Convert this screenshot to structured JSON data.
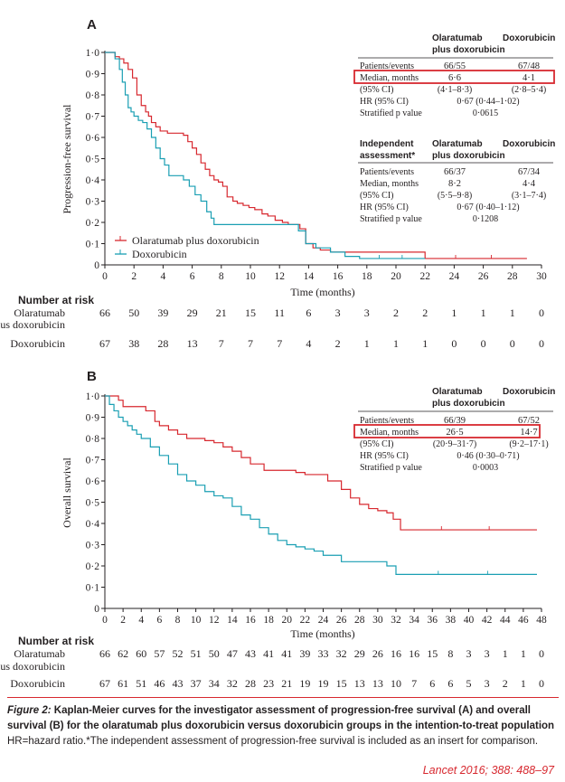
{
  "panels": [
    {
      "letter": "A",
      "ylabel": "Progression-free survival",
      "xlabel": "Time (months)",
      "table": {
        "headers": [
          "Olaratumab",
          "plus doxorubicin",
          "Doxorubicin"
        ],
        "rows": [
          [
            "Patients/events",
            "66/55",
            "67/48"
          ],
          [
            "Median, months",
            "6·6",
            "4·1"
          ],
          [
            "(95% CI)",
            "(4·1–8·3)",
            "(2·8–5·4)"
          ],
          [
            "HR (95% CI)",
            "0·67 (0·44–1·02)",
            ""
          ],
          [
            "Stratified p value",
            "0·0615",
            ""
          ]
        ]
      },
      "table2": {
        "headers": [
          "Independent",
          "assessment*",
          "Olaratumab",
          "plus doxorubicin",
          "Doxorubicin"
        ],
        "rows": [
          [
            "Patients/events",
            "66/37",
            "67/34"
          ],
          [
            "Median, months",
            "8·2",
            "4·4"
          ],
          [
            "(95% CI)",
            "(5·5–9·8)",
            "(3·1–7·4)"
          ],
          [
            "HR (95% CI)",
            "0·67 (0·40–1·12)",
            ""
          ],
          [
            "Stratified p value",
            "0·1208",
            ""
          ]
        ]
      },
      "legend": [
        "Olaratumab plus doxorubicin",
        "Doxorubicin"
      ],
      "risk_title": "Number at risk",
      "risk_labels": [
        "Olaratumab",
        "plus doxorubicin",
        "Doxorubicin"
      ],
      "risk_olara": [
        "66",
        "50",
        "39",
        "29",
        "21",
        "15",
        "11",
        "6",
        "3",
        "3",
        "2",
        "2",
        "1",
        "1",
        "1",
        "0"
      ],
      "risk_doxo": [
        "67",
        "38",
        "28",
        "13",
        "7",
        "7",
        "7",
        "4",
        "2",
        "1",
        "1",
        "1",
        "0",
        "0",
        "0",
        "0"
      ]
    },
    {
      "letter": "B",
      "ylabel": "Overall survival",
      "xlabel": "Time (months)",
      "table": {
        "headers": [
          "Olaratumab",
          "plus doxorubicin",
          "Doxorubicin"
        ],
        "rows": [
          [
            "Patients/events",
            "66/39",
            "67/52"
          ],
          [
            "Median, months",
            "26·5",
            "14·7"
          ],
          [
            "(95% CI)",
            "(20·9–31·7)",
            "(9·2–17·1)"
          ],
          [
            "HR (95% CI)",
            "0·46 (0·30–0·71)",
            ""
          ],
          [
            "Stratified p value",
            "0·0003",
            ""
          ]
        ]
      },
      "risk_title": "Number at risk",
      "risk_labels": [
        "Olaratumab",
        "plus doxorubicin",
        "Doxorubicin"
      ],
      "risk_olara": [
        "66",
        "62",
        "60",
        "57",
        "52",
        "51",
        "50",
        "47",
        "43",
        "41",
        "41",
        "39",
        "33",
        "32",
        "29",
        "26",
        "16",
        "16",
        "15",
        "8",
        "3",
        "3",
        "1",
        "1",
        "0"
      ],
      "risk_doxo": [
        "67",
        "61",
        "51",
        "46",
        "43",
        "37",
        "34",
        "32",
        "28",
        "23",
        "21",
        "19",
        "19",
        "15",
        "13",
        "13",
        "10",
        "7",
        "6",
        "6",
        "5",
        "3",
        "2",
        "1",
        "0"
      ]
    }
  ],
  "chart_data": [
    {
      "type": "line",
      "ylabel": "Progression-free survival",
      "xlabel": "Time (months)",
      "xlim": [
        0,
        30
      ],
      "ylim": [
        0,
        1.0
      ],
      "xticks": [
        "0",
        "2",
        "4",
        "6",
        "8",
        "10",
        "12",
        "14",
        "16",
        "18",
        "20",
        "22",
        "24",
        "26",
        "28",
        "30"
      ],
      "yticks": [
        "0",
        "0·1",
        "0·2",
        "0·3",
        "0·4",
        "0·5",
        "0·6",
        "0·7",
        "0·8",
        "0·9",
        "1·0"
      ],
      "legend_position": "bottom-left",
      "series": [
        {
          "name": "Olaratumab plus doxorubicin",
          "color": "#d7282f",
          "x": [
            0,
            0.7,
            1.0,
            1.3,
            1.6,
            1.9,
            2.2,
            2.5,
            2.8,
            3.0,
            3.2,
            3.5,
            3.8,
            4.0,
            4.3,
            4.6,
            5.0,
            5.4,
            5.7,
            6.0,
            6.3,
            6.6,
            6.9,
            7.2,
            7.5,
            7.8,
            8.1,
            8.4,
            8.8,
            9.1,
            9.5,
            9.9,
            10.3,
            10.8,
            11.2,
            11.7,
            12.2,
            12.6,
            13.0,
            13.4,
            13.8,
            14.3,
            14.8,
            15.5,
            16.5,
            17.5,
            18.5,
            20.5,
            22.0,
            29.0
          ],
          "y": [
            1.0,
            0.98,
            0.97,
            0.95,
            0.92,
            0.88,
            0.8,
            0.75,
            0.72,
            0.7,
            0.67,
            0.65,
            0.63,
            0.63,
            0.62,
            0.62,
            0.62,
            0.61,
            0.58,
            0.55,
            0.52,
            0.48,
            0.45,
            0.42,
            0.4,
            0.39,
            0.37,
            0.32,
            0.3,
            0.29,
            0.28,
            0.27,
            0.26,
            0.24,
            0.23,
            0.21,
            0.2,
            0.19,
            0.19,
            0.17,
            0.1,
            0.08,
            0.07,
            0.06,
            0.06,
            0.06,
            0.06,
            0.06,
            0.03,
            0.03
          ]
        },
        {
          "name": "Doxorubicin",
          "color": "#1a9fb3",
          "x": [
            0,
            0.7,
            1.0,
            1.2,
            1.4,
            1.6,
            1.8,
            2.0,
            2.3,
            2.6,
            2.9,
            3.2,
            3.5,
            3.8,
            4.1,
            4.4,
            4.7,
            5.0,
            5.4,
            5.8,
            6.2,
            6.6,
            7.0,
            7.3,
            7.5,
            8.0,
            10.0,
            12.0,
            13.3,
            13.8,
            14.5,
            15.5,
            16.5,
            17.5,
            22.0
          ],
          "y": [
            1.0,
            0.97,
            0.92,
            0.86,
            0.8,
            0.74,
            0.72,
            0.7,
            0.68,
            0.67,
            0.64,
            0.6,
            0.55,
            0.5,
            0.47,
            0.42,
            0.42,
            0.42,
            0.4,
            0.37,
            0.33,
            0.3,
            0.25,
            0.22,
            0.19,
            0.19,
            0.19,
            0.19,
            0.16,
            0.1,
            0.08,
            0.06,
            0.04,
            0.03,
            0.03
          ]
        }
      ]
    },
    {
      "type": "line",
      "ylabel": "Overall survival",
      "xlabel": "Time (months)",
      "xlim": [
        0,
        48
      ],
      "ylim": [
        0,
        1.0
      ],
      "xticks": [
        "0",
        "2",
        "4",
        "6",
        "8",
        "10",
        "12",
        "14",
        "16",
        "18",
        "20",
        "22",
        "24",
        "26",
        "28",
        "30",
        "32",
        "34",
        "36",
        "38",
        "40",
        "42",
        "44",
        "46",
        "48"
      ],
      "yticks": [
        "0",
        "0·1",
        "0·2",
        "0·3",
        "0·4",
        "0·5",
        "0·6",
        "0·7",
        "0·8",
        "0·9",
        "1·0"
      ],
      "series": [
        {
          "name": "Olaratumab plus doxorubicin",
          "color": "#d7282f",
          "x": [
            0,
            1.5,
            2.0,
            4.5,
            5.5,
            6.0,
            7.0,
            8.0,
            9.0,
            10.0,
            11.0,
            12.0,
            13.0,
            14.0,
            15.0,
            16.0,
            17.5,
            19.0,
            20.0,
            21.0,
            22.0,
            23.0,
            24.5,
            26.0,
            27.0,
            28.0,
            29.0,
            30.0,
            31.0,
            31.7,
            32.5,
            47.5
          ],
          "y": [
            1.0,
            0.98,
            0.95,
            0.93,
            0.88,
            0.86,
            0.84,
            0.82,
            0.8,
            0.8,
            0.79,
            0.78,
            0.76,
            0.74,
            0.71,
            0.68,
            0.65,
            0.65,
            0.65,
            0.64,
            0.63,
            0.63,
            0.6,
            0.56,
            0.52,
            0.49,
            0.47,
            0.46,
            0.45,
            0.42,
            0.37,
            0.37
          ]
        },
        {
          "name": "Doxorubicin",
          "color": "#1a9fb3",
          "x": [
            0,
            0.5,
            1.0,
            1.5,
            2.0,
            2.5,
            3.0,
            3.5,
            4.0,
            5.0,
            6.0,
            7.0,
            8.0,
            9.0,
            10.0,
            11.0,
            12.0,
            13.0,
            14.0,
            15.0,
            16.0,
            17.0,
            18.0,
            19.0,
            20.0,
            21.0,
            22.0,
            23.0,
            24.0,
            26.0,
            29.0,
            31.0,
            32.0,
            47.5
          ],
          "y": [
            1.0,
            0.96,
            0.93,
            0.9,
            0.88,
            0.86,
            0.84,
            0.82,
            0.8,
            0.76,
            0.72,
            0.68,
            0.63,
            0.6,
            0.58,
            0.55,
            0.53,
            0.52,
            0.48,
            0.44,
            0.42,
            0.38,
            0.35,
            0.32,
            0.3,
            0.29,
            0.28,
            0.27,
            0.25,
            0.22,
            0.22,
            0.2,
            0.16,
            0.16
          ]
        }
      ]
    }
  ],
  "caption": {
    "label": "Figure 2:",
    "bold_text": " Kaplan-Meier curves for the investigator assessment of progression-free survival (A) and overall survival (B) for the olaratumab plus doxorubicin versus doxorubicin groups in the intention-to-treat population",
    "note": "HR=hazard ratio.*The independent assessment of progression-free survival is included as an insert for comparison."
  },
  "citation": "Lancet 2016; 388: 488–97",
  "colors": {
    "olara": "#d7282f",
    "doxo": "#1a9fb3",
    "highlight": "#d7282f"
  }
}
